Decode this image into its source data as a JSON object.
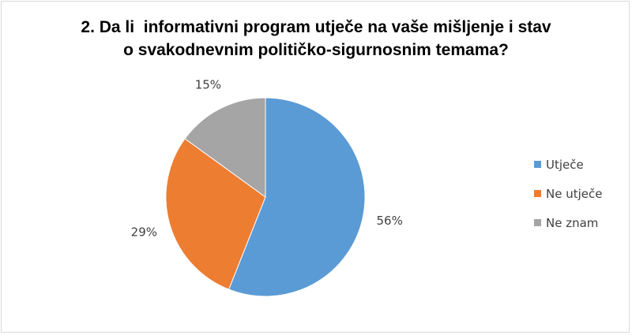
{
  "chart_data": {
    "type": "pie",
    "title_lines": [
      "2. Da li  informativni program utječe na vaše mišljenje i stav",
      "o svakodnevnim političko-sigurnosnim temama?"
    ],
    "categories": [
      "Utječe",
      "Ne utječe",
      "Ne znam"
    ],
    "values": [
      56,
      29,
      15
    ],
    "labels": [
      "56%",
      "29%",
      "15%"
    ],
    "colors": [
      "#5b9bd5",
      "#ed7d31",
      "#a5a5a5"
    ],
    "legend_position": "right"
  }
}
